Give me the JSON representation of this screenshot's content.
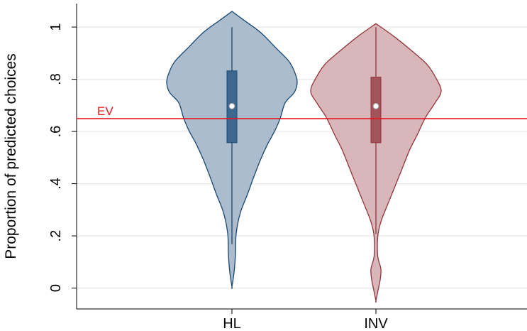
{
  "chart_data": {
    "type": "violin",
    "y_label": "Proportion of predicted choices",
    "categories": [
      "HL",
      "INV"
    ],
    "ylim": [
      -0.08,
      1.09
    ],
    "yticks": [
      0,
      {
        "value": 0.2,
        "label": ".2"
      },
      {
        "value": 0.4,
        "label": ".4"
      },
      {
        "value": 0.6,
        "label": ".6"
      },
      {
        "value": 0.8,
        "label": ".8"
      },
      1
    ],
    "grid": true,
    "reference_line": {
      "label": "EV",
      "value": 0.649,
      "color": "#e8141c"
    },
    "series": [
      {
        "name": "HL",
        "color": "#1a476f",
        "fill": "#aabccd",
        "box_color": "#3d6890",
        "y": [
          1.06,
          1.03,
          0.98,
          0.92,
          0.87,
          0.83,
          0.79,
          0.75,
          0.71,
          0.65,
          0.6,
          0.55,
          0.49,
          0.42,
          0.36,
          0.29,
          0.21,
          0.13,
          0.06,
          0.005
        ],
        "density": [
          0,
          0.15,
          0.4,
          0.62,
          0.8,
          0.88,
          0.92,
          0.88,
          0.75,
          0.68,
          0.6,
          0.5,
          0.4,
          0.3,
          0.22,
          0.12,
          0.06,
          0.05,
          0.03,
          0
        ],
        "q1": 0.557,
        "median": 0.697,
        "q3": 0.832,
        "whisker_low": 0.168,
        "whisker_high": 1.0
      },
      {
        "name": "INV",
        "color": "#90353b",
        "fill": "#d9b6ba",
        "box_color": "#a3545a",
        "y": [
          1.013,
          0.965,
          0.91,
          0.857,
          0.803,
          0.754,
          0.708,
          0.654,
          0.586,
          0.532,
          0.465,
          0.397,
          0.33,
          0.262,
          0.208,
          0.154,
          0.114,
          0.073,
          0.032,
          -0.008,
          -0.049
        ],
        "density": [
          0,
          0.25,
          0.5,
          0.72,
          0.85,
          0.92,
          0.83,
          0.7,
          0.58,
          0.48,
          0.38,
          0.28,
          0.18,
          0.08,
          0.03,
          0.02,
          0.03,
          0.07,
          0.06,
          0.03,
          0
        ],
        "q1": 0.557,
        "median": 0.697,
        "q3": 0.808,
        "whisker_low": 0.208,
        "whisker_high": 1.0
      }
    ]
  }
}
